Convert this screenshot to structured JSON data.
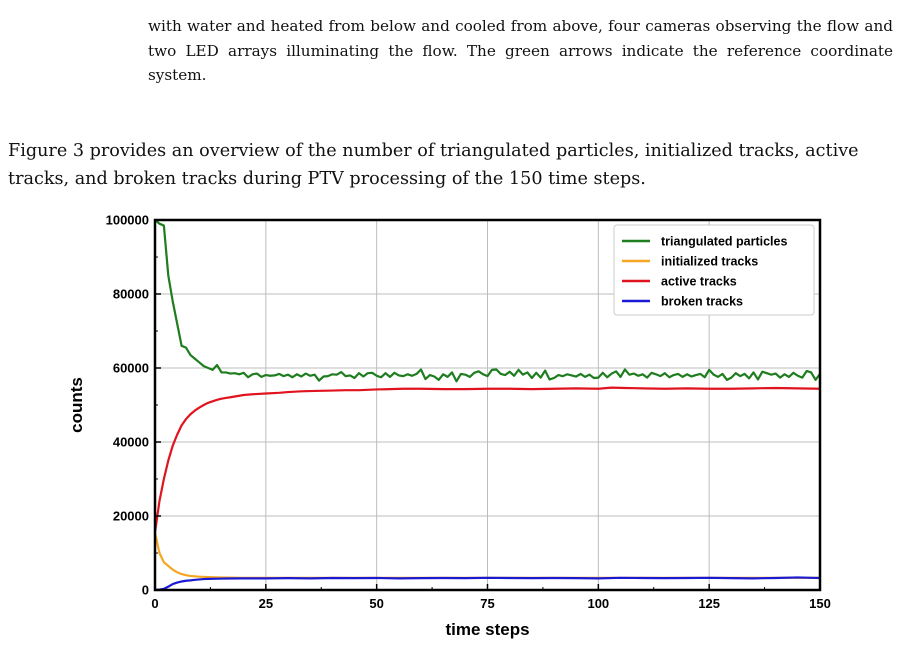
{
  "caption_text": "with water and heated from below and cooled from above, four cameras observing the flow and two LED arrays illuminating the flow. The green arrows indicate the reference coordinate system.",
  "body_text": "Figure 3 provides an overview of the number of triangulated particles, initialized tracks, active tracks, and broken tracks during PTV processing of the 150 time steps.",
  "chart_data": {
    "type": "line",
    "title": "",
    "xlabel": "time steps",
    "ylabel": "counts",
    "xlim": [
      0,
      150
    ],
    "ylim": [
      0,
      100000
    ],
    "xticks": [
      0,
      25,
      50,
      75,
      100,
      125,
      150
    ],
    "yticks": [
      0,
      20000,
      40000,
      60000,
      80000,
      100000
    ],
    "xtick_labels": [
      "0",
      "25",
      "50",
      "75",
      "100",
      "125",
      "150"
    ],
    "ytick_labels": [
      "0",
      "20000",
      "40000",
      "60000",
      "80000",
      "100000"
    ],
    "grid": true,
    "legend_position": "top-right",
    "colors": {
      "triangulated": "#1e7d1e",
      "initialized": "#f5a623",
      "active": "#e0141e",
      "broken": "#1a1ad4"
    },
    "series": [
      {
        "name": "triangulated particles",
        "color": "#1e7d1e",
        "points": [
          [
            0,
            100000
          ],
          [
            1,
            99000
          ],
          [
            2,
            98500
          ],
          [
            3,
            85000
          ],
          [
            4,
            78000
          ],
          [
            5,
            72000
          ],
          [
            6,
            66000
          ],
          [
            7,
            65500
          ],
          [
            8,
            63500
          ],
          [
            9,
            62500
          ],
          [
            10,
            61500
          ],
          [
            11,
            60500
          ],
          [
            12,
            60000
          ],
          [
            13,
            59500
          ],
          [
            14,
            60800
          ],
          [
            15,
            58800
          ],
          [
            16,
            58800
          ],
          [
            17,
            58500
          ],
          [
            18,
            58600
          ],
          [
            19,
            58300
          ],
          [
            20,
            58700
          ],
          [
            21,
            57500
          ],
          [
            22,
            58300
          ],
          [
            23,
            58500
          ],
          [
            24,
            57600
          ],
          [
            25,
            58100
          ],
          [
            26,
            57900
          ],
          [
            27,
            58000
          ],
          [
            28,
            58400
          ],
          [
            29,
            57800
          ],
          [
            30,
            58200
          ],
          [
            31,
            57500
          ],
          [
            32,
            58300
          ],
          [
            33,
            57700
          ],
          [
            34,
            58500
          ],
          [
            35,
            57900
          ],
          [
            36,
            58200
          ],
          [
            37,
            56600
          ],
          [
            38,
            57700
          ],
          [
            39,
            57800
          ],
          [
            40,
            58300
          ],
          [
            41,
            58200
          ],
          [
            42,
            58900
          ],
          [
            43,
            57800
          ],
          [
            44,
            58000
          ],
          [
            45,
            57300
          ],
          [
            46,
            58600
          ],
          [
            47,
            57700
          ],
          [
            48,
            58600
          ],
          [
            49,
            58700
          ],
          [
            50,
            57900
          ],
          [
            51,
            57500
          ],
          [
            52,
            58600
          ],
          [
            53,
            57600
          ],
          [
            54,
            58700
          ],
          [
            55,
            58000
          ],
          [
            56,
            57800
          ],
          [
            57,
            58300
          ],
          [
            58,
            57900
          ],
          [
            59,
            58400
          ],
          [
            60,
            59600
          ],
          [
            61,
            57000
          ],
          [
            62,
            58100
          ],
          [
            63,
            57700
          ],
          [
            64,
            56800
          ],
          [
            65,
            58300
          ],
          [
            66,
            57600
          ],
          [
            67,
            58800
          ],
          [
            68,
            56400
          ],
          [
            69,
            58400
          ],
          [
            70,
            58200
          ],
          [
            71,
            57600
          ],
          [
            72,
            58700
          ],
          [
            73,
            59100
          ],
          [
            74,
            58300
          ],
          [
            75,
            57800
          ],
          [
            76,
            59500
          ],
          [
            77,
            59600
          ],
          [
            78,
            58400
          ],
          [
            79,
            58100
          ],
          [
            80,
            59000
          ],
          [
            81,
            57900
          ],
          [
            82,
            59500
          ],
          [
            83,
            58200
          ],
          [
            84,
            58800
          ],
          [
            85,
            57300
          ],
          [
            86,
            58700
          ],
          [
            87,
            57400
          ],
          [
            88,
            59300
          ],
          [
            89,
            56900
          ],
          [
            90,
            57300
          ],
          [
            91,
            58100
          ],
          [
            92,
            57800
          ],
          [
            93,
            58300
          ],
          [
            94,
            58000
          ],
          [
            95,
            57700
          ],
          [
            96,
            58400
          ],
          [
            97,
            57600
          ],
          [
            98,
            58200
          ],
          [
            99,
            57300
          ],
          [
            100,
            57400
          ],
          [
            101,
            58700
          ],
          [
            102,
            57500
          ],
          [
            103,
            58500
          ],
          [
            104,
            59100
          ],
          [
            105,
            57600
          ],
          [
            106,
            59600
          ],
          [
            107,
            58200
          ],
          [
            108,
            58500
          ],
          [
            109,
            57900
          ],
          [
            110,
            58300
          ],
          [
            111,
            57400
          ],
          [
            112,
            58700
          ],
          [
            113,
            58300
          ],
          [
            114,
            57800
          ],
          [
            115,
            58600
          ],
          [
            116,
            57500
          ],
          [
            117,
            58100
          ],
          [
            118,
            58400
          ],
          [
            119,
            57600
          ],
          [
            120,
            58300
          ],
          [
            121,
            57700
          ],
          [
            122,
            58100
          ],
          [
            123,
            58400
          ],
          [
            124,
            57500
          ],
          [
            125,
            59500
          ],
          [
            126,
            58200
          ],
          [
            127,
            57600
          ],
          [
            128,
            58400
          ],
          [
            129,
            56800
          ],
          [
            130,
            57400
          ],
          [
            131,
            58600
          ],
          [
            132,
            57800
          ],
          [
            133,
            58400
          ],
          [
            134,
            57200
          ],
          [
            135,
            58800
          ],
          [
            136,
            56900
          ],
          [
            137,
            59000
          ],
          [
            138,
            58600
          ],
          [
            139,
            58200
          ],
          [
            140,
            58500
          ],
          [
            141,
            57400
          ],
          [
            142,
            58300
          ],
          [
            143,
            57600
          ],
          [
            144,
            58700
          ],
          [
            145,
            57900
          ],
          [
            146,
            57400
          ],
          [
            147,
            59200
          ],
          [
            148,
            58800
          ],
          [
            149,
            56800
          ],
          [
            150,
            58400
          ]
        ]
      },
      {
        "name": "initialized tracks",
        "color": "#f5a623",
        "points": [
          [
            0,
            15500
          ],
          [
            1,
            10000
          ],
          [
            2,
            7500
          ],
          [
            3,
            6500
          ],
          [
            4,
            5500
          ],
          [
            5,
            4800
          ],
          [
            6,
            4300
          ],
          [
            7,
            4000
          ],
          [
            8,
            3800
          ],
          [
            9,
            3700
          ],
          [
            10,
            3600
          ],
          [
            12,
            3500
          ],
          [
            15,
            3400
          ],
          [
            20,
            3300
          ],
          [
            30,
            3300
          ],
          [
            40,
            3300
          ],
          [
            50,
            3300
          ],
          [
            60,
            3300
          ],
          [
            70,
            3300
          ],
          [
            80,
            3300
          ],
          [
            90,
            3300
          ],
          [
            100,
            3300
          ],
          [
            110,
            3300
          ],
          [
            120,
            3300
          ],
          [
            130,
            3300
          ],
          [
            140,
            3300
          ],
          [
            150,
            3300
          ]
        ]
      },
      {
        "name": "active tracks",
        "color": "#e0141e",
        "points": [
          [
            0,
            15500
          ],
          [
            1,
            24000
          ],
          [
            2,
            30000
          ],
          [
            3,
            35000
          ],
          [
            4,
            39000
          ],
          [
            5,
            42000
          ],
          [
            6,
            44500
          ],
          [
            7,
            46200
          ],
          [
            8,
            47500
          ],
          [
            9,
            48500
          ],
          [
            10,
            49300
          ],
          [
            11,
            50000
          ],
          [
            12,
            50600
          ],
          [
            13,
            51000
          ],
          [
            14,
            51400
          ],
          [
            15,
            51700
          ],
          [
            16,
            51900
          ],
          [
            17,
            52100
          ],
          [
            18,
            52300
          ],
          [
            19,
            52500
          ],
          [
            20,
            52700
          ],
          [
            22,
            52900
          ],
          [
            25,
            53100
          ],
          [
            28,
            53300
          ],
          [
            30,
            53500
          ],
          [
            33,
            53700
          ],
          [
            36,
            53800
          ],
          [
            40,
            53900
          ],
          [
            43,
            54000
          ],
          [
            46,
            54000
          ],
          [
            50,
            54200
          ],
          [
            53,
            54300
          ],
          [
            56,
            54400
          ],
          [
            60,
            54400
          ],
          [
            65,
            54300
          ],
          [
            70,
            54300
          ],
          [
            75,
            54400
          ],
          [
            80,
            54400
          ],
          [
            85,
            54300
          ],
          [
            90,
            54400
          ],
          [
            95,
            54500
          ],
          [
            100,
            54400
          ],
          [
            103,
            54700
          ],
          [
            106,
            54600
          ],
          [
            110,
            54500
          ],
          [
            115,
            54400
          ],
          [
            120,
            54500
          ],
          [
            125,
            54400
          ],
          [
            130,
            54400
          ],
          [
            135,
            54500
          ],
          [
            140,
            54600
          ],
          [
            145,
            54500
          ],
          [
            150,
            54400
          ]
        ]
      },
      {
        "name": "broken tracks",
        "color": "#1a1ad4",
        "points": [
          [
            0,
            0
          ],
          [
            1,
            100
          ],
          [
            2,
            300
          ],
          [
            3,
            900
          ],
          [
            4,
            1600
          ],
          [
            5,
            2000
          ],
          [
            6,
            2300
          ],
          [
            7,
            2500
          ],
          [
            8,
            2600
          ],
          [
            9,
            2750
          ],
          [
            10,
            2850
          ],
          [
            11,
            2950
          ],
          [
            12,
            3000
          ],
          [
            14,
            3050
          ],
          [
            16,
            3100
          ],
          [
            20,
            3150
          ],
          [
            25,
            3150
          ],
          [
            30,
            3200
          ],
          [
            35,
            3150
          ],
          [
            40,
            3250
          ],
          [
            45,
            3200
          ],
          [
            50,
            3250
          ],
          [
            55,
            3150
          ],
          [
            60,
            3200
          ],
          [
            65,
            3250
          ],
          [
            70,
            3200
          ],
          [
            75,
            3300
          ],
          [
            80,
            3250
          ],
          [
            85,
            3200
          ],
          [
            90,
            3250
          ],
          [
            95,
            3200
          ],
          [
            100,
            3150
          ],
          [
            105,
            3300
          ],
          [
            110,
            3250
          ],
          [
            115,
            3200
          ],
          [
            120,
            3250
          ],
          [
            125,
            3300
          ],
          [
            130,
            3200
          ],
          [
            135,
            3150
          ],
          [
            140,
            3250
          ],
          [
            145,
            3400
          ],
          [
            148,
            3300
          ],
          [
            150,
            3250
          ]
        ]
      }
    ]
  }
}
